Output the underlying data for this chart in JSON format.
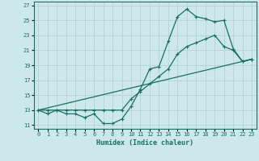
{
  "xlabel": "Humidex (Indice chaleur)",
  "ylabel": "",
  "bg_color": "#cce8e8",
  "grid_color": "#b8d4d4",
  "line_color": "#1a6e64",
  "xlim": [
    -0.5,
    23.5
  ],
  "ylim": [
    10.5,
    27.5
  ],
  "yticks": [
    11,
    13,
    15,
    17,
    19,
    21,
    23,
    25,
    27
  ],
  "xticks": [
    0,
    1,
    2,
    3,
    4,
    5,
    6,
    7,
    8,
    9,
    10,
    11,
    12,
    13,
    14,
    15,
    16,
    17,
    18,
    19,
    20,
    21,
    22,
    23
  ],
  "series1_x": [
    0,
    1,
    2,
    3,
    4,
    5,
    6,
    7,
    8,
    9,
    10,
    11,
    12,
    13,
    14,
    15,
    16,
    17,
    18,
    19,
    20,
    21,
    22,
    23
  ],
  "series1_y": [
    13,
    12.5,
    13,
    12.5,
    12.5,
    12.0,
    12.5,
    11.2,
    11.2,
    11.8,
    13.5,
    15.8,
    18.5,
    18.8,
    22.2,
    25.5,
    26.5,
    25.5,
    25.2,
    24.8,
    25.0,
    21.2,
    19.5,
    19.8
  ],
  "series2_x": [
    0,
    1,
    2,
    3,
    4,
    5,
    6,
    7,
    8,
    9,
    10,
    11,
    12,
    13,
    14,
    15,
    16,
    17,
    18,
    19,
    20,
    21,
    22,
    23
  ],
  "series2_y": [
    13,
    13,
    13,
    13,
    13,
    13,
    13,
    13,
    13,
    13,
    14.5,
    15.5,
    16.5,
    17.5,
    18.5,
    20.5,
    21.5,
    22.0,
    22.5,
    23.0,
    21.5,
    21.0,
    19.5,
    19.8
  ],
  "series3_x": [
    0,
    23
  ],
  "series3_y": [
    13,
    19.8
  ],
  "marker": "+"
}
